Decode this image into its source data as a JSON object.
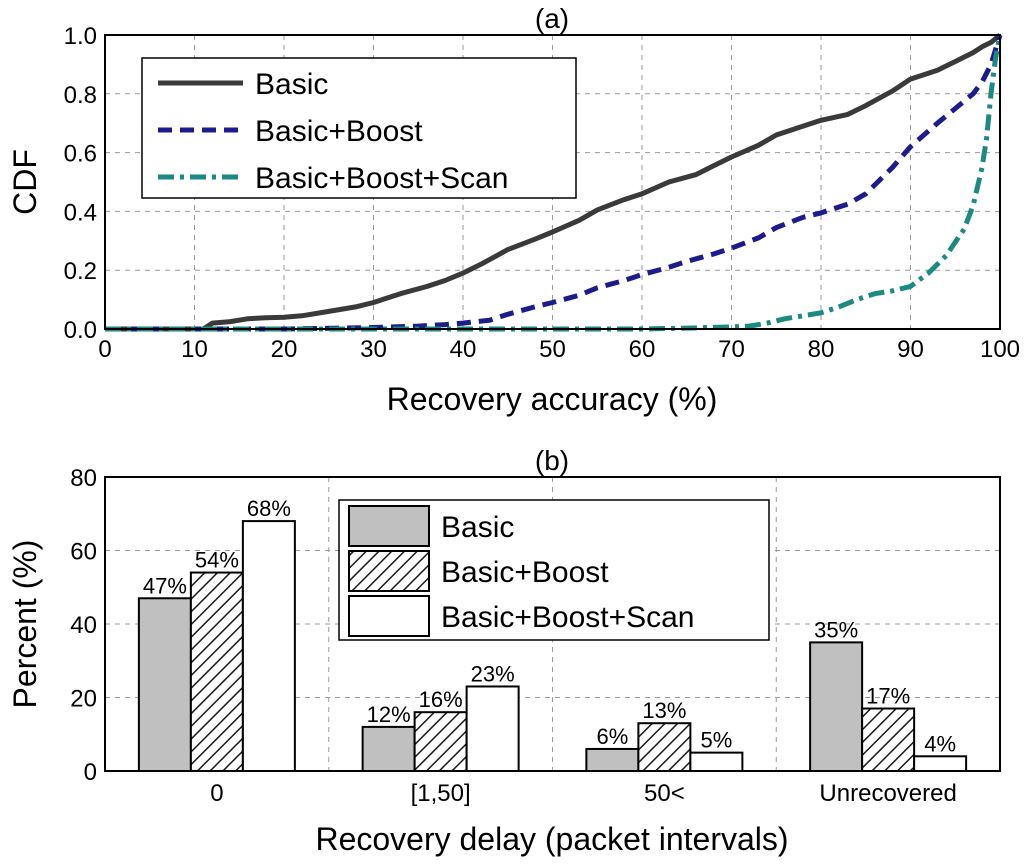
{
  "chart_data": [
    {
      "type": "line",
      "title": "(a)",
      "xlabel": "Recovery accuracy (%)",
      "ylabel": "CDF",
      "xlim": [
        0,
        100
      ],
      "ylim": [
        0,
        1
      ],
      "xticks": [
        "0",
        "10",
        "20",
        "30",
        "40",
        "50",
        "60",
        "70",
        "80",
        "90",
        "100"
      ],
      "yticks": [
        "0.0",
        "0.2",
        "0.4",
        "0.6",
        "0.8",
        "1.0"
      ],
      "grid": true,
      "legend_position": "top-left",
      "series": [
        {
          "name": "Basic",
          "color": "#3a3a3a",
          "style": "solid",
          "x": [
            0,
            11,
            12,
            14,
            16,
            18,
            20,
            22,
            25,
            28,
            30,
            33,
            36,
            38,
            40,
            42,
            45,
            48,
            50,
            53,
            55,
            58,
            60,
            63,
            66,
            68,
            70,
            73,
            75,
            78,
            80,
            83,
            85,
            88,
            90,
            93,
            95,
            97,
            98,
            99,
            100
          ],
          "y": [
            0,
            0,
            0.02,
            0.025,
            0.035,
            0.038,
            0.04,
            0.045,
            0.06,
            0.075,
            0.09,
            0.12,
            0.145,
            0.165,
            0.19,
            0.22,
            0.27,
            0.305,
            0.33,
            0.37,
            0.405,
            0.44,
            0.46,
            0.5,
            0.525,
            0.555,
            0.585,
            0.625,
            0.66,
            0.69,
            0.71,
            0.73,
            0.76,
            0.81,
            0.85,
            0.88,
            0.91,
            0.94,
            0.96,
            0.975,
            1.0
          ]
        },
        {
          "name": "Basic+Boost",
          "color": "#1c1c8c",
          "style": "dashed",
          "x": [
            0,
            20,
            30,
            35,
            38,
            40,
            43,
            45,
            48,
            50,
            53,
            55,
            58,
            60,
            63,
            65,
            68,
            70,
            73,
            75,
            78,
            80,
            83,
            85,
            88,
            90,
            93,
            95,
            97,
            98,
            99,
            100
          ],
          "y": [
            0,
            0,
            0.005,
            0.01,
            0.015,
            0.02,
            0.03,
            0.05,
            0.075,
            0.09,
            0.115,
            0.14,
            0.165,
            0.185,
            0.21,
            0.23,
            0.255,
            0.275,
            0.31,
            0.345,
            0.38,
            0.395,
            0.425,
            0.46,
            0.55,
            0.62,
            0.7,
            0.75,
            0.8,
            0.84,
            0.9,
            1.0
          ]
        },
        {
          "name": "Basic+Boost+Scan",
          "color": "#1a8a82",
          "style": "dashdot",
          "x": [
            0,
            60,
            65,
            70,
            72,
            74,
            76,
            78,
            80,
            82,
            84,
            86,
            88,
            90,
            92,
            94,
            96,
            97,
            98,
            98.5,
            99,
            99.5,
            100
          ],
          "y": [
            0,
            0,
            0.003,
            0.007,
            0.01,
            0.02,
            0.035,
            0.045,
            0.055,
            0.075,
            0.1,
            0.12,
            0.13,
            0.145,
            0.19,
            0.25,
            0.34,
            0.42,
            0.55,
            0.65,
            0.8,
            0.92,
            1.0
          ]
        }
      ]
    },
    {
      "type": "bar",
      "title": "(b)",
      "xlabel": "Recovery delay (packet intervals)",
      "ylabel": "Percent (%)",
      "ylim": [
        0,
        80
      ],
      "yticks": [
        "0",
        "20",
        "40",
        "60",
        "80"
      ],
      "categories": [
        "0",
        "[1,50]",
        "50<",
        "Unrecovered"
      ],
      "grid": true,
      "legend_position": "top-center",
      "series": [
        {
          "name": "Basic",
          "fill": "gray",
          "values": [
            47,
            12,
            6,
            35
          ],
          "labels": [
            "47%",
            "12%",
            "6%",
            "35%"
          ]
        },
        {
          "name": "Basic+Boost",
          "fill": "hatched",
          "values": [
            54,
            16,
            13,
            17
          ],
          "labels": [
            "54%",
            "16%",
            "13%",
            "17%"
          ]
        },
        {
          "name": "Basic+Boost+Scan",
          "fill": "white",
          "values": [
            68,
            23,
            5,
            4
          ],
          "labels": [
            "68%",
            "23%",
            "5%",
            "4%"
          ]
        }
      ]
    }
  ]
}
